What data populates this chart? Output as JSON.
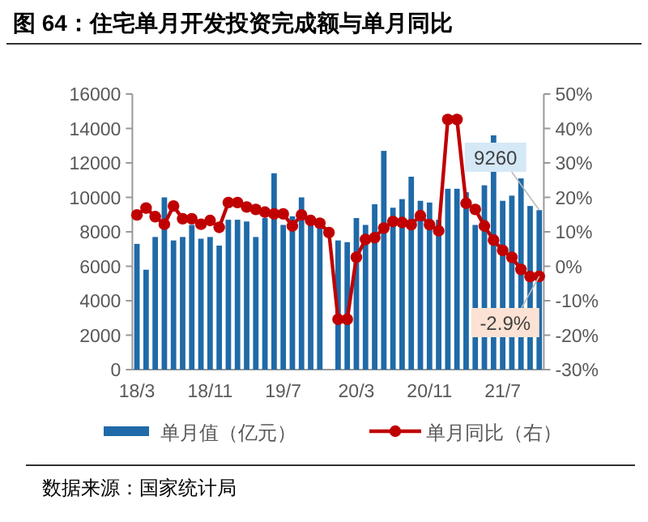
{
  "chart_data": {
    "type": "bar",
    "title": "图 64：住宅单月开发投资完成额与单月同比",
    "categories": [
      "18/3",
      null,
      null,
      null,
      null,
      null,
      null,
      null,
      "18/11",
      null,
      null,
      null,
      null,
      null,
      null,
      null,
      "19/7",
      null,
      null,
      null,
      null,
      null,
      null,
      null,
      "20/3",
      null,
      null,
      null,
      null,
      null,
      null,
      null,
      "20/11",
      null,
      null,
      null,
      null,
      null,
      null,
      null,
      "21/7",
      null,
      null,
      null,
      null
    ],
    "series": [
      {
        "name": "单月值（亿元）",
        "color": "#1f6aa8",
        "values": [
          7300,
          5800,
          7700,
          10000,
          7500,
          7700,
          8400,
          7600,
          7700,
          7200,
          8700,
          8700,
          8600,
          7700,
          8800,
          11400,
          8400,
          8900,
          10000,
          8400,
          8400,
          null,
          7500,
          7400,
          8800,
          8400,
          9600,
          12700,
          9400,
          9900,
          11200,
          9800,
          9700,
          8700,
          10500,
          10500,
          10300,
          8400,
          10700,
          13600,
          9800,
          10100,
          11100,
          9500,
          9260
        ],
        "value_labels": [
          null,
          null,
          null,
          null,
          null,
          null,
          null,
          null,
          null,
          null,
          null,
          null,
          null,
          null,
          null,
          null,
          null,
          null,
          null,
          null,
          null,
          null,
          null,
          null,
          null,
          null,
          null,
          null,
          null,
          null,
          null,
          null,
          null,
          null,
          null,
          null,
          null,
          null,
          null,
          null,
          null,
          null,
          null,
          null,
          "9260"
        ]
      },
      {
        "name": "单月同比（右）",
        "type": "line",
        "axis": "y2",
        "color": "#c00000",
        "marker": "circle",
        "values": [
          14.9,
          16.9,
          14.4,
          12.2,
          17.5,
          13.8,
          13.8,
          12.2,
          13.3,
          11.3,
          18.5,
          18.5,
          17.2,
          16.5,
          15.7,
          15.2,
          15.2,
          11.7,
          14.9,
          13.3,
          12.5,
          9.8,
          -15.4,
          -15.4,
          2.6,
          7.8,
          8.3,
          11.1,
          13.0,
          12.7,
          12.1,
          14.7,
          12.1,
          10.3,
          42.6,
          42.6,
          18.3,
          16.5,
          11.7,
          7.6,
          4.6,
          2.6,
          -0.9,
          -3.0,
          -2.9
        ],
        "value_labels": [
          null,
          null,
          null,
          null,
          null,
          null,
          null,
          null,
          null,
          null,
          null,
          null,
          null,
          null,
          null,
          null,
          null,
          null,
          null,
          null,
          null,
          null,
          null,
          null,
          null,
          null,
          null,
          null,
          null,
          null,
          null,
          null,
          null,
          null,
          null,
          null,
          null,
          null,
          null,
          null,
          null,
          null,
          null,
          null,
          "-2.9%"
        ]
      }
    ],
    "ylim": [
      0,
      16000
    ],
    "yticks": [
      0,
      2000,
      4000,
      6000,
      8000,
      10000,
      12000,
      14000,
      16000
    ],
    "y2lim": [
      -30,
      50
    ],
    "y2ticks": [
      {
        "value": -30,
        "label": "-30%"
      },
      {
        "value": -20,
        "label": "-20%"
      },
      {
        "value": -10,
        "label": "-10%"
      },
      {
        "value": 0,
        "label": "0%"
      },
      {
        "value": 10,
        "label": "10%"
      },
      {
        "value": 20,
        "label": "20%"
      },
      {
        "value": 30,
        "label": "30%"
      },
      {
        "value": 40,
        "label": "40%"
      },
      {
        "value": 50,
        "label": "50%"
      }
    ],
    "legend": "bottom",
    "grid": false,
    "annotations": [
      "数据来源：国家统计局"
    ]
  }
}
